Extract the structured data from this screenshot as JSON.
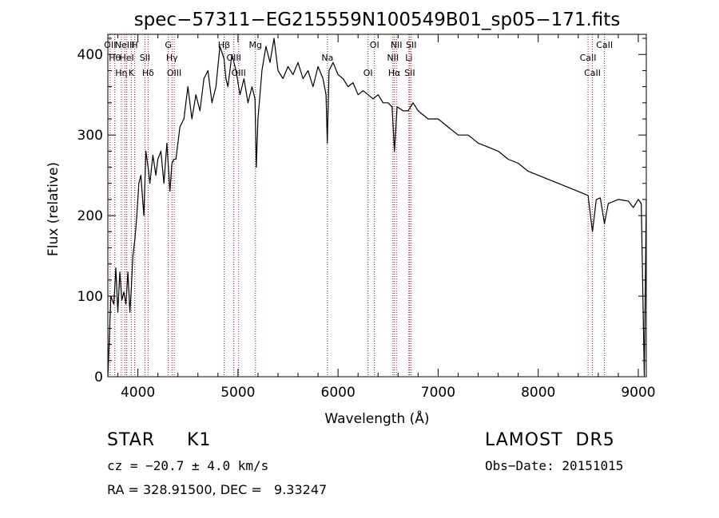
{
  "chart_data": {
    "type": "line",
    "title": "spec−57311−EG215559N100549B01_sp05−171.fits",
    "xlabel": "Wavelength (Å)",
    "ylabel": "Flux (relative)",
    "xlim": [
      3700,
      9080
    ],
    "ylim": [
      0,
      425
    ],
    "xticks": [
      4000,
      5000,
      6000,
      7000,
      8000,
      9000
    ],
    "yticks": [
      0,
      100,
      200,
      300,
      400
    ],
    "grid": false,
    "series": [
      {
        "values_x": [
          3700,
          3730,
          3760,
          3780,
          3800,
          3820,
          3840,
          3860,
          3880,
          3900,
          3920,
          3935,
          3950,
          3970,
          3990,
          4010,
          4030,
          4060,
          4080,
          4102,
          4120,
          4150,
          4180,
          4200,
          4230,
          4260,
          4290,
          4320,
          4340,
          4360,
          4380,
          4420,
          4460,
          4500,
          4540,
          4580,
          4620,
          4660,
          4700,
          4740,
          4780,
          4820,
          4861,
          4880,
          4900,
          4940,
          4980,
          5020,
          5060,
          5100,
          5140,
          5170,
          5183,
          5200,
          5240,
          5280,
          5320,
          5360,
          5400,
          5450,
          5500,
          5550,
          5600,
          5650,
          5700,
          5750,
          5800,
          5850,
          5880,
          5893,
          5910,
          5950,
          6000,
          6050,
          6100,
          6150,
          6200,
          6250,
          6300,
          6350,
          6400,
          6450,
          6500,
          6540,
          6563,
          6590,
          6650,
          6700,
          6750,
          6800,
          6900,
          7000,
          7100,
          7200,
          7300,
          7400,
          7500,
          7600,
          7700,
          7800,
          7900,
          8000,
          8100,
          8200,
          8300,
          8400,
          8498,
          8542,
          8580,
          8620,
          8662,
          8700,
          8800,
          8900,
          8950,
          9000,
          9030,
          9060,
          9080
        ],
        "values_y": [
          0,
          100,
          90,
          135,
          80,
          130,
          95,
          105,
          90,
          130,
          80,
          110,
          150,
          170,
          200,
          240,
          250,
          200,
          280,
          260,
          240,
          275,
          250,
          270,
          280,
          240,
          290,
          230,
          265,
          270,
          270,
          310,
          320,
          360,
          320,
          350,
          330,
          370,
          380,
          340,
          360,
          410,
          395,
          370,
          360,
          400,
          380,
          350,
          370,
          340,
          360,
          345,
          260,
          320,
          380,
          410,
          390,
          420,
          380,
          370,
          385,
          375,
          390,
          370,
          380,
          360,
          385,
          370,
          350,
          290,
          380,
          390,
          375,
          370,
          360,
          365,
          350,
          355,
          350,
          345,
          350,
          340,
          340,
          335,
          280,
          335,
          330,
          330,
          340,
          330,
          320,
          320,
          310,
          300,
          300,
          290,
          285,
          280,
          270,
          265,
          255,
          250,
          245,
          240,
          235,
          230,
          225,
          180,
          220,
          222,
          190,
          215,
          220,
          218,
          210,
          220,
          215,
          0,
          220
        ]
      }
    ],
    "lines": [
      {
        "x": 3722,
        "label": "OII"
      },
      {
        "x": 3770,
        "label": "Hθ"
      },
      {
        "x": 3835,
        "label": "Hη"
      },
      {
        "x": 3869,
        "label": "NeIII"
      },
      {
        "x": 3889,
        "label": "HeI"
      },
      {
        "x": 3934,
        "label": "K"
      },
      {
        "x": 3968,
        "label": "H"
      },
      {
        "x": 4070,
        "label": "SII"
      },
      {
        "x": 4102,
        "label": "Hδ"
      },
      {
        "x": 4304,
        "label": "G"
      },
      {
        "x": 4341,
        "label": "Hγ"
      },
      {
        "x": 4363,
        "label": "OIII"
      },
      {
        "x": 4861,
        "label": "Hβ"
      },
      {
        "x": 4959,
        "label": "OIII"
      },
      {
        "x": 5007,
        "label": "OIII"
      },
      {
        "x": 5175,
        "label": "Mg"
      },
      {
        "x": 5894,
        "label": "Na"
      },
      {
        "x": 6300,
        "label": "OI"
      },
      {
        "x": 6364,
        "label": "OI"
      },
      {
        "x": 6548,
        "label": "NII"
      },
      {
        "x": 6563,
        "label": "Hα"
      },
      {
        "x": 6583,
        "label": "NII"
      },
      {
        "x": 6708,
        "label": "Li"
      },
      {
        "x": 6716,
        "label": "SII"
      },
      {
        "x": 6731,
        "label": "SII"
      },
      {
        "x": 8498,
        "label": "CaII"
      },
      {
        "x": 8542,
        "label": "CaII"
      },
      {
        "x": 8662,
        "label": "CaII"
      }
    ]
  },
  "info": {
    "object_class": "STAR",
    "subclass": "K1",
    "survey": "LAMOST  DR5",
    "cz": "cz = −20.7 ± 4.0 km/s",
    "obs_date": "Obs−Date: 20151015",
    "coords": "RA = 328.91500, DEC =   9.33247"
  },
  "colors": {
    "spectrum": "#000000",
    "lines": "#aa1111"
  }
}
